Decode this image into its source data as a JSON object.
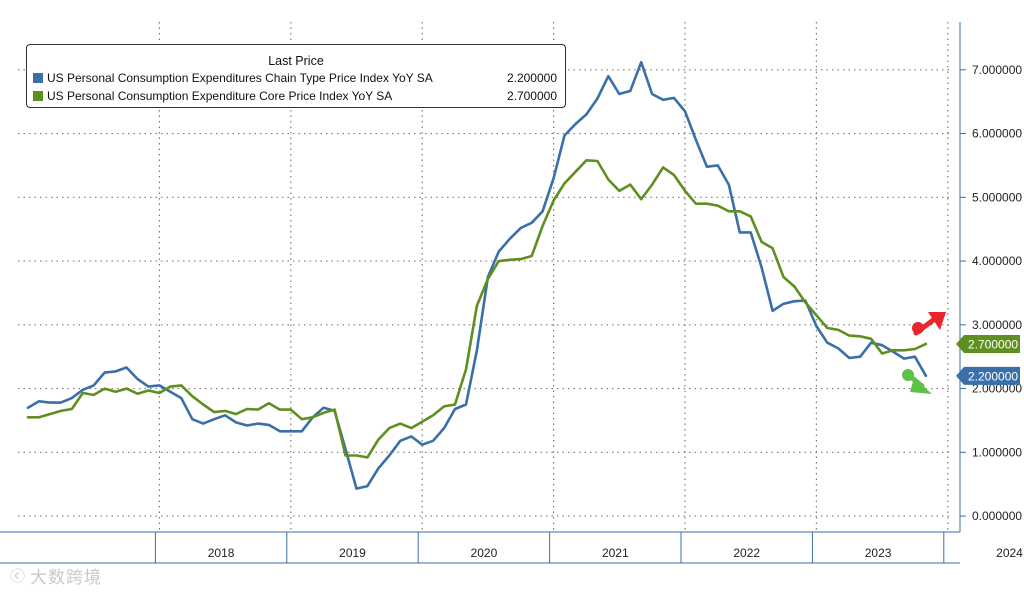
{
  "chart_data": {
    "type": "line",
    "legend": {
      "title": "Last Price",
      "placement": "top-left"
    },
    "x_unit": "month index (0 = Jan 2017)",
    "x_labels": [
      "2018",
      "2019",
      "2020",
      "2021",
      "2022",
      "2023",
      "2024"
    ],
    "y_ticks": [
      "0.000000",
      "1.000000",
      "2.000000",
      "3.000000",
      "4.000000",
      "5.000000",
      "6.000000",
      "7.000000"
    ],
    "ylim": [
      -0.25,
      7.75
    ],
    "xlim": [
      0,
      86
    ],
    "grid": "dotted",
    "series": [
      {
        "name": "US Personal Consumption Expenditures Chain Type Price Index YoY SA",
        "last_value": "2.200000",
        "last_value_label": "2.200000",
        "color": "#3a6fa8",
        "points": [
          [
            0,
            1.7
          ],
          [
            1,
            1.8
          ],
          [
            2,
            1.78
          ],
          [
            3,
            1.78
          ],
          [
            4,
            1.85
          ],
          [
            5,
            1.98
          ],
          [
            6,
            2.05
          ],
          [
            7,
            2.25
          ],
          [
            8,
            2.27
          ],
          [
            9,
            2.33
          ],
          [
            10,
            2.15
          ],
          [
            11,
            2.03
          ],
          [
            12,
            2.05
          ],
          [
            13,
            1.95
          ],
          [
            14,
            1.85
          ],
          [
            15,
            1.52
          ],
          [
            16,
            1.45
          ],
          [
            17,
            1.52
          ],
          [
            18,
            1.58
          ],
          [
            19,
            1.47
          ],
          [
            20,
            1.42
          ],
          [
            21,
            1.45
          ],
          [
            22,
            1.43
          ],
          [
            23,
            1.33
          ],
          [
            24,
            1.33
          ],
          [
            25,
            1.33
          ],
          [
            26,
            1.55
          ],
          [
            27,
            1.7
          ],
          [
            28,
            1.65
          ],
          [
            29,
            1.05
          ],
          [
            30,
            0.43
          ],
          [
            31,
            0.47
          ],
          [
            32,
            0.75
          ],
          [
            33,
            0.95
          ],
          [
            34,
            1.18
          ],
          [
            35,
            1.25
          ],
          [
            36,
            1.12
          ],
          [
            37,
            1.18
          ],
          [
            38,
            1.38
          ],
          [
            39,
            1.68
          ],
          [
            40,
            1.75
          ],
          [
            41,
            2.6
          ],
          [
            42,
            3.75
          ],
          [
            43,
            4.15
          ],
          [
            44,
            4.35
          ],
          [
            45,
            4.52
          ],
          [
            46,
            4.6
          ],
          [
            47,
            4.78
          ],
          [
            48,
            5.3
          ],
          [
            49,
            5.97
          ],
          [
            50,
            6.15
          ],
          [
            51,
            6.3
          ],
          [
            52,
            6.55
          ],
          [
            53,
            6.9
          ],
          [
            54,
            6.62
          ],
          [
            55,
            6.67
          ],
          [
            56,
            7.12
          ],
          [
            57,
            6.62
          ],
          [
            58,
            6.53
          ],
          [
            59,
            6.56
          ],
          [
            60,
            6.35
          ],
          [
            61,
            5.9
          ],
          [
            62,
            5.48
          ],
          [
            63,
            5.5
          ],
          [
            64,
            5.2
          ],
          [
            65,
            4.45
          ],
          [
            66,
            4.45
          ],
          [
            67,
            3.9
          ],
          [
            68,
            3.22
          ],
          [
            69,
            3.33
          ],
          [
            70,
            3.37
          ],
          [
            71,
            3.38
          ],
          [
            72,
            2.98
          ],
          [
            73,
            2.72
          ],
          [
            74,
            2.63
          ],
          [
            75,
            2.48
          ],
          [
            76,
            2.5
          ],
          [
            77,
            2.72
          ],
          [
            78,
            2.68
          ],
          [
            79,
            2.58
          ],
          [
            80,
            2.47
          ],
          [
            81,
            2.5
          ],
          [
            82,
            2.2
          ]
        ]
      },
      {
        "name": "US Personal Consumption Expenditure Core Price Index YoY SA",
        "last_value": "2.700000",
        "last_value_label": "2.700000",
        "color": "#5e8f1f",
        "points": [
          [
            0,
            1.55
          ],
          [
            1,
            1.55
          ],
          [
            2,
            1.6
          ],
          [
            3,
            1.65
          ],
          [
            4,
            1.68
          ],
          [
            5,
            1.93
          ],
          [
            6,
            1.9
          ],
          [
            7,
            2.0
          ],
          [
            8,
            1.95
          ],
          [
            9,
            2.0
          ],
          [
            10,
            1.92
          ],
          [
            11,
            1.97
          ],
          [
            12,
            1.93
          ],
          [
            13,
            2.03
          ],
          [
            14,
            2.05
          ],
          [
            15,
            1.88
          ],
          [
            16,
            1.75
          ],
          [
            17,
            1.63
          ],
          [
            18,
            1.65
          ],
          [
            19,
            1.6
          ],
          [
            20,
            1.68
          ],
          [
            21,
            1.67
          ],
          [
            22,
            1.77
          ],
          [
            23,
            1.67
          ],
          [
            24,
            1.67
          ],
          [
            25,
            1.52
          ],
          [
            26,
            1.55
          ],
          [
            27,
            1.62
          ],
          [
            28,
            1.67
          ],
          [
            29,
            0.95
          ],
          [
            30,
            0.95
          ],
          [
            31,
            0.92
          ],
          [
            32,
            1.2
          ],
          [
            33,
            1.38
          ],
          [
            34,
            1.45
          ],
          [
            35,
            1.38
          ],
          [
            36,
            1.48
          ],
          [
            37,
            1.58
          ],
          [
            38,
            1.72
          ],
          [
            39,
            1.75
          ],
          [
            40,
            2.3
          ],
          [
            41,
            3.3
          ],
          [
            42,
            3.72
          ],
          [
            43,
            4.0
          ],
          [
            44,
            4.02
          ],
          [
            45,
            4.03
          ],
          [
            46,
            4.08
          ],
          [
            47,
            4.55
          ],
          [
            48,
            4.95
          ],
          [
            49,
            5.22
          ],
          [
            50,
            5.4
          ],
          [
            51,
            5.58
          ],
          [
            52,
            5.57
          ],
          [
            53,
            5.28
          ],
          [
            54,
            5.1
          ],
          [
            55,
            5.2
          ],
          [
            56,
            4.97
          ],
          [
            57,
            5.2
          ],
          [
            58,
            5.47
          ],
          [
            59,
            5.35
          ],
          [
            60,
            5.1
          ],
          [
            61,
            4.9
          ],
          [
            62,
            4.9
          ],
          [
            63,
            4.87
          ],
          [
            64,
            4.78
          ],
          [
            65,
            4.78
          ],
          [
            66,
            4.7
          ],
          [
            67,
            4.3
          ],
          [
            68,
            4.2
          ],
          [
            69,
            3.75
          ],
          [
            70,
            3.6
          ],
          [
            71,
            3.35
          ],
          [
            72,
            3.15
          ],
          [
            73,
            2.95
          ],
          [
            74,
            2.92
          ],
          [
            75,
            2.83
          ],
          [
            76,
            2.82
          ],
          [
            77,
            2.78
          ],
          [
            78,
            2.55
          ],
          [
            79,
            2.6
          ],
          [
            80,
            2.6
          ],
          [
            81,
            2.62
          ],
          [
            82,
            2.7
          ]
        ]
      }
    ],
    "annotations": [
      {
        "type": "arrow-up",
        "color": "#e8262b",
        "near": "core series end"
      },
      {
        "type": "arrow-down",
        "color": "#5cc24a",
        "near": "headline series end"
      }
    ]
  },
  "watermark": {
    "text": "大数跨境",
    "logo": "ⓒ"
  }
}
